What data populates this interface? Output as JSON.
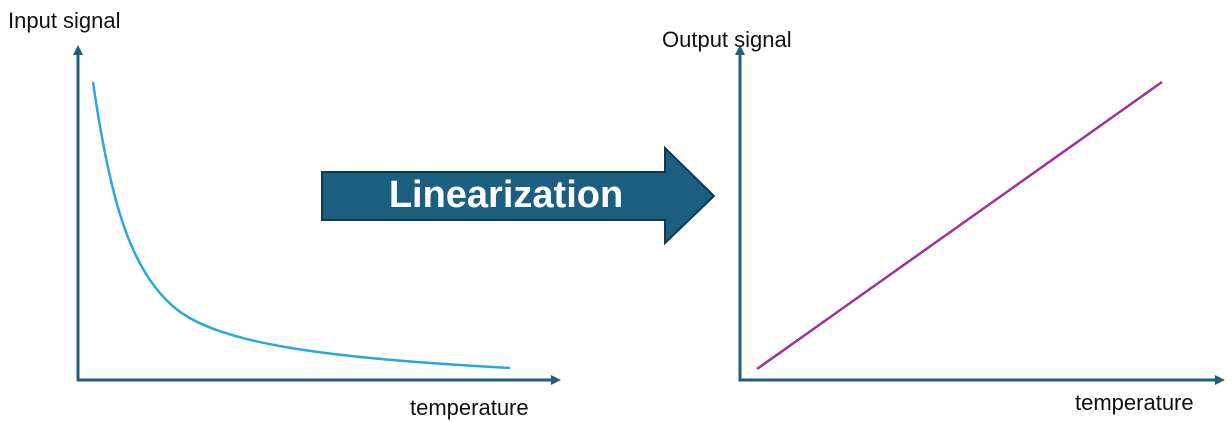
{
  "left_plot": {
    "y_label": "Input signal",
    "x_label": "temperature"
  },
  "arrow": {
    "label": "Linearization"
  },
  "right_plot": {
    "y_label": "Output signal",
    "x_label": "temperature"
  }
}
